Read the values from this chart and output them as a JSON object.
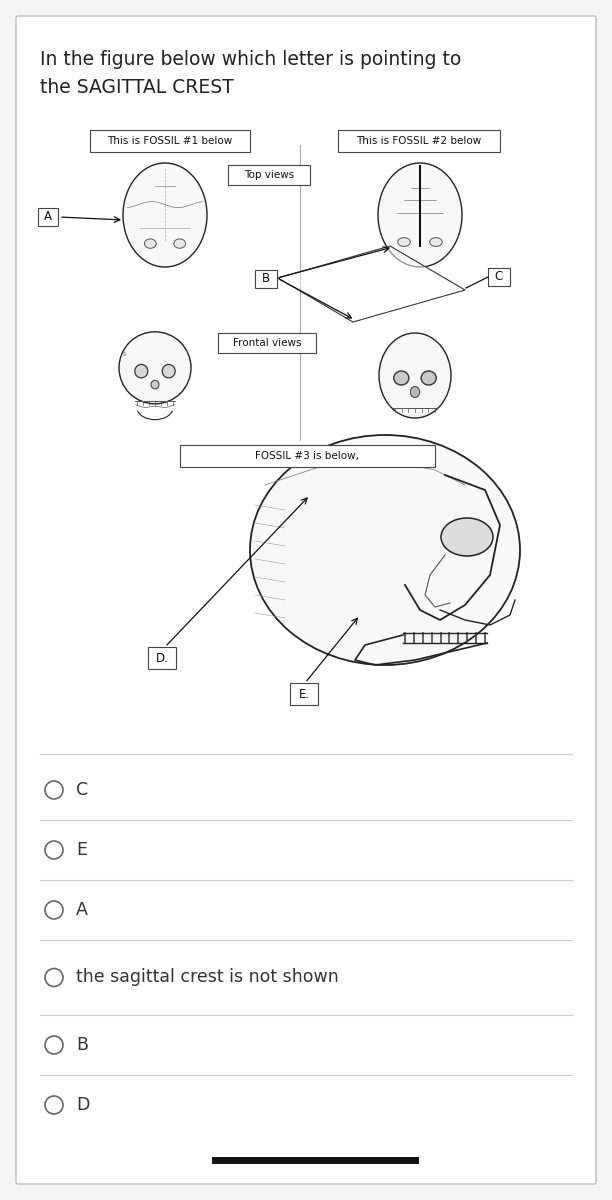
{
  "title_line1": "In the figure below which letter is pointing to",
  "title_line2": "the SAGITTAL CREST",
  "bg_color": "#f5f5f5",
  "card_bg": "#ffffff",
  "card_border": "#bbbbbb",
  "text_color": "#222222",
  "fossil1_label": "This is FOSSIL #1 below",
  "fossil2_label": "This is FOSSIL #2 below",
  "fossil3_label": "FOSSIL #3 is below,",
  "top_views_label": "Top views",
  "frontal_views_label": "Frontal views",
  "letter_A": "A",
  "letter_B": "B",
  "letter_C": "C",
  "letter_D": "D.",
  "letter_E": "E.",
  "options": [
    "C",
    "E",
    "A",
    "the sagittal crest is not shown",
    "B",
    "D"
  ],
  "divider_color": "#cccccc",
  "option_text_color": "#333333",
  "radio_color": "#666666",
  "bottom_bar_color": "#111111",
  "skull_edge": "#222222",
  "skull_face": "#f8f8f8",
  "center_line_color": "#aaaaaa",
  "label_box_edge": "#444444"
}
